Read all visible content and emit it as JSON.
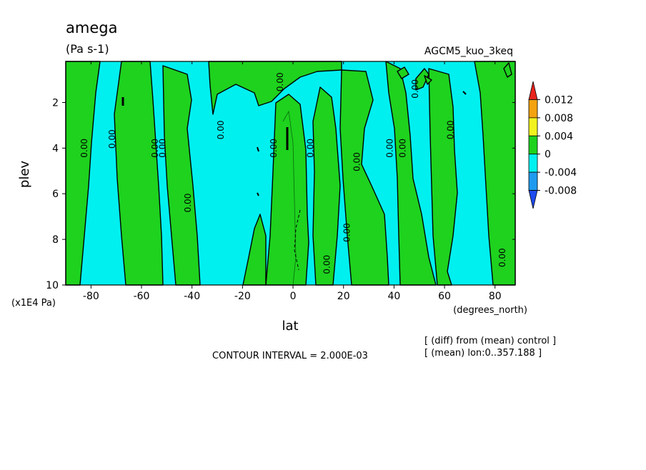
{
  "chart_data": {
    "type": "heatmap",
    "title": "amega",
    "units": "(Pa s-1)",
    "experiment": "AGCM5_kuo_3keq",
    "xlabel": "lat",
    "xunits": "(degrees_north)",
    "ylabel": "plev",
    "yunits": "(x1E4 Pa)",
    "xlim": [
      -90,
      88
    ],
    "ylim": [
      10,
      0.2
    ],
    "x_ticks": [
      -80,
      -60,
      -40,
      -20,
      0,
      20,
      40,
      60,
      80
    ],
    "y_ticks": [
      2,
      4,
      6,
      8,
      10
    ],
    "contour_interval": "CONTOUR INTERVAL = 2.000E-03",
    "notes": [
      "[ (diff) from (mean) control ]",
      "[ (mean) lon:0..357.188 ]"
    ],
    "colorbar": {
      "labels": [
        "0.012",
        "0.008",
        "0.004",
        "0",
        "-0.004",
        "-0.008"
      ],
      "colors": [
        "#e8231c",
        "#f4a20f",
        "#f2f21e",
        "#1ed21e",
        "#00f0f0",
        "#1e9bf0",
        "#1e4bf0"
      ]
    },
    "contour_labels": [
      {
        "text": "0.00",
        "lat": -81.5,
        "plev": 4.0
      },
      {
        "text": "0.00",
        "lat": -70.5,
        "plev": 3.6
      },
      {
        "text": "0.00",
        "lat": -53.5,
        "plev": 4.0
      },
      {
        "text": "0.00",
        "lat": -50.5,
        "plev": 4.0
      },
      {
        "text": "0.00",
        "lat": -40.5,
        "plev": 6.4
      },
      {
        "text": "0.00",
        "lat": -27.5,
        "plev": 3.2
      },
      {
        "text": "0.00",
        "lat": -6.5,
        "plev": 4.0
      },
      {
        "text": "0.00",
        "lat": -4.0,
        "plev": 1.1
      },
      {
        "text": "0.00",
        "lat": 8.0,
        "plev": 4.0
      },
      {
        "text": "0.00",
        "lat": 14.5,
        "plev": 9.1
      },
      {
        "text": "0.00",
        "lat": 22.5,
        "plev": 7.7
      },
      {
        "text": "0.00",
        "lat": 26.5,
        "plev": 4.6
      },
      {
        "text": "0.00",
        "lat": 39.5,
        "plev": 4.0
      },
      {
        "text": "0.00",
        "lat": 44.5,
        "plev": 4.0
      },
      {
        "text": "0.00",
        "lat": 49.5,
        "plev": 1.4
      },
      {
        "text": "0.00",
        "lat": 63.5,
        "plev": 3.2
      },
      {
        "text": "0.00",
        "lat": 84.0,
        "plev": 8.8
      }
    ]
  }
}
